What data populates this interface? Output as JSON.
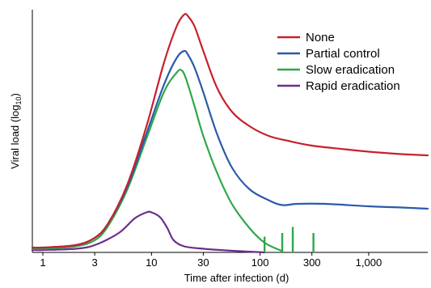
{
  "chart_data": {
    "type": "line",
    "xlabel": "Time after infection (d)",
    "ylabel": "Viral load (log",
    "ylabel_sub": "10",
    "ylabel_end": ")",
    "x_scale": "log",
    "xlim": [
      0.8,
      3500
    ],
    "ylim": [
      0,
      10
    ],
    "x_ticks": [
      {
        "value": 1,
        "label": "1"
      },
      {
        "value": 3,
        "label": "3"
      },
      {
        "value": 10,
        "label": "10"
      },
      {
        "value": 30,
        "label": "30"
      },
      {
        "value": 100,
        "label": "100"
      },
      {
        "value": 300,
        "label": "300"
      },
      {
        "value": 1000,
        "label": "1,000"
      }
    ],
    "grid": false,
    "legend_position": "top-right",
    "series": [
      {
        "name": "None",
        "color": "#c8212b",
        "points": [
          [
            0.8,
            0.2
          ],
          [
            1,
            0.2
          ],
          [
            2,
            0.3
          ],
          [
            3,
            0.6
          ],
          [
            4,
            1.2
          ],
          [
            6,
            2.8
          ],
          [
            9,
            5.2
          ],
          [
            13,
            7.8
          ],
          [
            17,
            9.3
          ],
          [
            20,
            9.8
          ],
          [
            22,
            9.7
          ],
          [
            25,
            9.3
          ],
          [
            30,
            8.3
          ],
          [
            40,
            6.8
          ],
          [
            55,
            5.8
          ],
          [
            80,
            5.2
          ],
          [
            120,
            4.8
          ],
          [
            180,
            4.6
          ],
          [
            300,
            4.4
          ],
          [
            600,
            4.25
          ],
          [
            1000,
            4.15
          ],
          [
            2000,
            4.05
          ],
          [
            3500,
            4.0
          ]
        ]
      },
      {
        "name": "Partial control",
        "color": "#2b5aa8",
        "points": [
          [
            0.8,
            0.2
          ],
          [
            1,
            0.2
          ],
          [
            2,
            0.3
          ],
          [
            3,
            0.6
          ],
          [
            4,
            1.2
          ],
          [
            6,
            2.7
          ],
          [
            9,
            4.9
          ],
          [
            13,
            6.9
          ],
          [
            17,
            8.0
          ],
          [
            20,
            8.3
          ],
          [
            22,
            8.1
          ],
          [
            25,
            7.6
          ],
          [
            30,
            6.6
          ],
          [
            40,
            4.9
          ],
          [
            55,
            3.5
          ],
          [
            80,
            2.6
          ],
          [
            120,
            2.15
          ],
          [
            160,
            1.95
          ],
          [
            220,
            2.0
          ],
          [
            400,
            2.0
          ],
          [
            1000,
            1.9
          ],
          [
            2000,
            1.85
          ],
          [
            3500,
            1.8
          ]
        ]
      },
      {
        "name": "Slow eradication",
        "color": "#2ea84a",
        "points": [
          [
            0.8,
            0.15
          ],
          [
            1,
            0.15
          ],
          [
            2,
            0.25
          ],
          [
            3,
            0.5
          ],
          [
            4,
            1.1
          ],
          [
            6,
            2.6
          ],
          [
            9,
            4.7
          ],
          [
            13,
            6.6
          ],
          [
            17,
            7.4
          ],
          [
            19,
            7.5
          ],
          [
            21,
            7.1
          ],
          [
            25,
            6.0
          ],
          [
            30,
            4.8
          ],
          [
            40,
            3.3
          ],
          [
            55,
            2.0
          ],
          [
            80,
            1.0
          ],
          [
            110,
            0.4
          ],
          [
            160,
            0.05
          ]
        ],
        "spikes": [
          [
            110,
            0.65
          ],
          [
            160,
            0.8
          ],
          [
            200,
            1.05
          ],
          [
            310,
            0.8
          ]
        ]
      },
      {
        "name": "Rapid eradication",
        "color": "#6b2d8c",
        "points": [
          [
            0.8,
            0.1
          ],
          [
            1,
            0.1
          ],
          [
            2,
            0.15
          ],
          [
            3,
            0.3
          ],
          [
            5,
            0.8
          ],
          [
            7,
            1.4
          ],
          [
            9,
            1.65
          ],
          [
            10,
            1.65
          ],
          [
            12,
            1.45
          ],
          [
            14,
            1.0
          ],
          [
            16,
            0.5
          ],
          [
            20,
            0.25
          ],
          [
            30,
            0.15
          ],
          [
            50,
            0.08
          ],
          [
            80,
            0.03
          ],
          [
            110,
            0.0
          ]
        ]
      }
    ]
  }
}
